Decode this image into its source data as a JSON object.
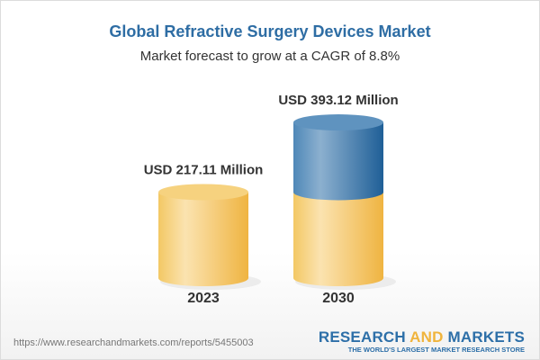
{
  "chart_data": {
    "type": "bar",
    "style": "3d-cylinder",
    "title": "Global Refractive Surgery Devices Market",
    "subtitle": "Market forecast to grow at a CAGR of 8.8%",
    "categories": [
      "2023",
      "2030"
    ],
    "values": [
      217.11,
      393.12
    ],
    "data_labels": [
      "USD 217.11 Million",
      "USD 393.12 Million"
    ],
    "unit": "USD Million",
    "colors": {
      "base": "#f1c35a",
      "growth": "#3a78ad"
    },
    "grid": false,
    "legend": "none"
  },
  "footer": {
    "url": "https://www.researchandmarkets.com/reports/5455003",
    "logo": {
      "part1": "RESEARCH ",
      "part2": "AND",
      "part3": " MARKETS",
      "tagline": "THE WORLD'S LARGEST MARKET RESEARCH STORE"
    }
  }
}
